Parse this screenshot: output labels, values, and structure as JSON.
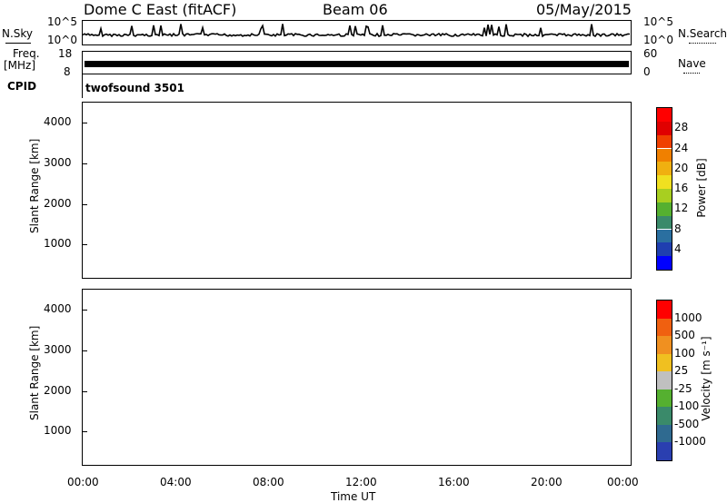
{
  "header": {
    "station": "Dome C East (fitACF)",
    "beam": "Beam 06",
    "date": "05/May/2015"
  },
  "top_panels": {
    "nsky_label": "N.Sky",
    "nsky_ticks": [
      "10^5",
      "10^0"
    ],
    "nsearch_label": "N.Search",
    "nsearch_ticks": [
      "10^5",
      "10^0"
    ],
    "freq_label": "Freq.",
    "freq_unit": "[MHz]",
    "freq_ticks": [
      "18",
      "8"
    ],
    "nave_label": "Nave",
    "nave_ticks": [
      "60",
      "0"
    ],
    "cpid_label": "CPID",
    "cpid_value": "twofsound 3501"
  },
  "chart_data": [
    {
      "type": "heatmap",
      "name": "power",
      "ylabel": "Slant Range [km]",
      "xlabel": "Time UT",
      "ylim": [
        180,
        4500
      ],
      "xlim": [
        0,
        24
      ],
      "yticks": [
        "4000",
        "3000",
        "2000",
        "1000"
      ],
      "xticks": [
        "00:00",
        "04:00",
        "08:00",
        "12:00",
        "16:00",
        "20:00",
        "00:00"
      ],
      "colorbar": {
        "label": "Power [dB]",
        "ticks": [
          "28",
          "24",
          "20",
          "16",
          "12",
          "8",
          "4"
        ],
        "colors": [
          "#0000ff",
          "#1f3fb0",
          "#2a6fa0",
          "#3a8a6a",
          "#55b030",
          "#a8cf20",
          "#f0e020",
          "#f0b010",
          "#f08000",
          "#f04000",
          "#e00000",
          "#ff0000"
        ]
      }
    },
    {
      "type": "heatmap",
      "name": "velocity",
      "ylabel": "Slant Range [km]",
      "xlabel": "Time UT",
      "ylim": [
        180,
        4500
      ],
      "xlim": [
        0,
        24
      ],
      "yticks": [
        "4000",
        "3000",
        "2000",
        "1000"
      ],
      "xticks": [
        "00:00",
        "04:00",
        "08:00",
        "12:00",
        "16:00",
        "20:00",
        "00:00"
      ],
      "colorbar": {
        "label": "Velocity [m s⁻¹]",
        "ticks": [
          "1000",
          "500",
          "100",
          "25",
          "-25",
          "-100",
          "-500",
          "-1000"
        ],
        "colors": [
          "#2a3fb0",
          "#2f6a90",
          "#3a8a6a",
          "#55b030",
          "#c0c0c0",
          "#f0c020",
          "#f09020",
          "#f06010",
          "#ff0000"
        ]
      }
    }
  ],
  "colors": {
    "power_strong": "#ff0000",
    "power_mid": "#f08000",
    "power_low": "#55b030",
    "power_weak": "#1f3fb0",
    "velocity_neg": "#f08020",
    "velocity_zero": "#c0c0c0",
    "velocity_pos": "#2f6a90"
  }
}
